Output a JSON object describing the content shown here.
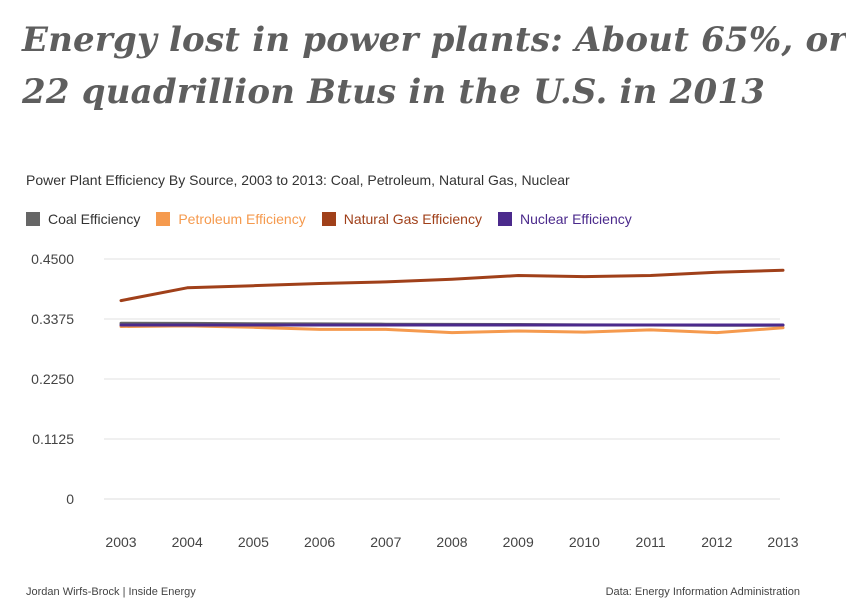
{
  "headline": {
    "line1": "Energy lost in power plants: About 65%, or",
    "line2": "22 quadrillion Btus in the U.S. in 2013"
  },
  "footer": {
    "credit": "Jordan Wirfs-Brock | Inside Energy",
    "source": "Data: Energy Information Administration"
  },
  "chart_data": {
    "type": "line",
    "title": "Power Plant Efficiency By Source, 2003 to 2013: Coal, Petroleum, Natural Gas, Nuclear",
    "xlabel": "",
    "ylabel": "",
    "ylim": [
      0,
      0.45
    ],
    "yticks": [
      "0",
      "0.1125",
      "0.2250",
      "0.3375",
      "0.4500"
    ],
    "ytick_values": [
      0,
      0.1125,
      0.225,
      0.3375,
      0.45
    ],
    "grid": true,
    "legend_position": "top-left",
    "x": [
      "2003",
      "2004",
      "2005",
      "2006",
      "2007",
      "2008",
      "2009",
      "2010",
      "2011",
      "2012",
      "2013"
    ],
    "series": [
      {
        "name": "Coal Efficiency",
        "color": "#666666",
        "values": [
          0.3296,
          0.3292,
          0.3285,
          0.3283,
          0.3278,
          0.3273,
          0.3271,
          0.3265,
          0.3262,
          0.3257,
          0.3259
        ]
      },
      {
        "name": "Petroleum Efficiency",
        "color": "#f59a4e",
        "values": [
          0.3235,
          0.3245,
          0.322,
          0.318,
          0.318,
          0.312,
          0.315,
          0.313,
          0.317,
          0.312,
          0.321
        ]
      },
      {
        "name": "Natural Gas Efficiency",
        "color": "#a0401a",
        "values": [
          0.372,
          0.396,
          0.4,
          0.404,
          0.407,
          0.412,
          0.419,
          0.417,
          0.419,
          0.425,
          0.429
        ]
      },
      {
        "name": "Nuclear Efficiency",
        "color": "#4b2a8c",
        "values": [
          0.3262,
          0.3262,
          0.3262,
          0.3262,
          0.3262,
          0.3262,
          0.3262,
          0.3262,
          0.3262,
          0.3262,
          0.3262
        ]
      }
    ]
  }
}
